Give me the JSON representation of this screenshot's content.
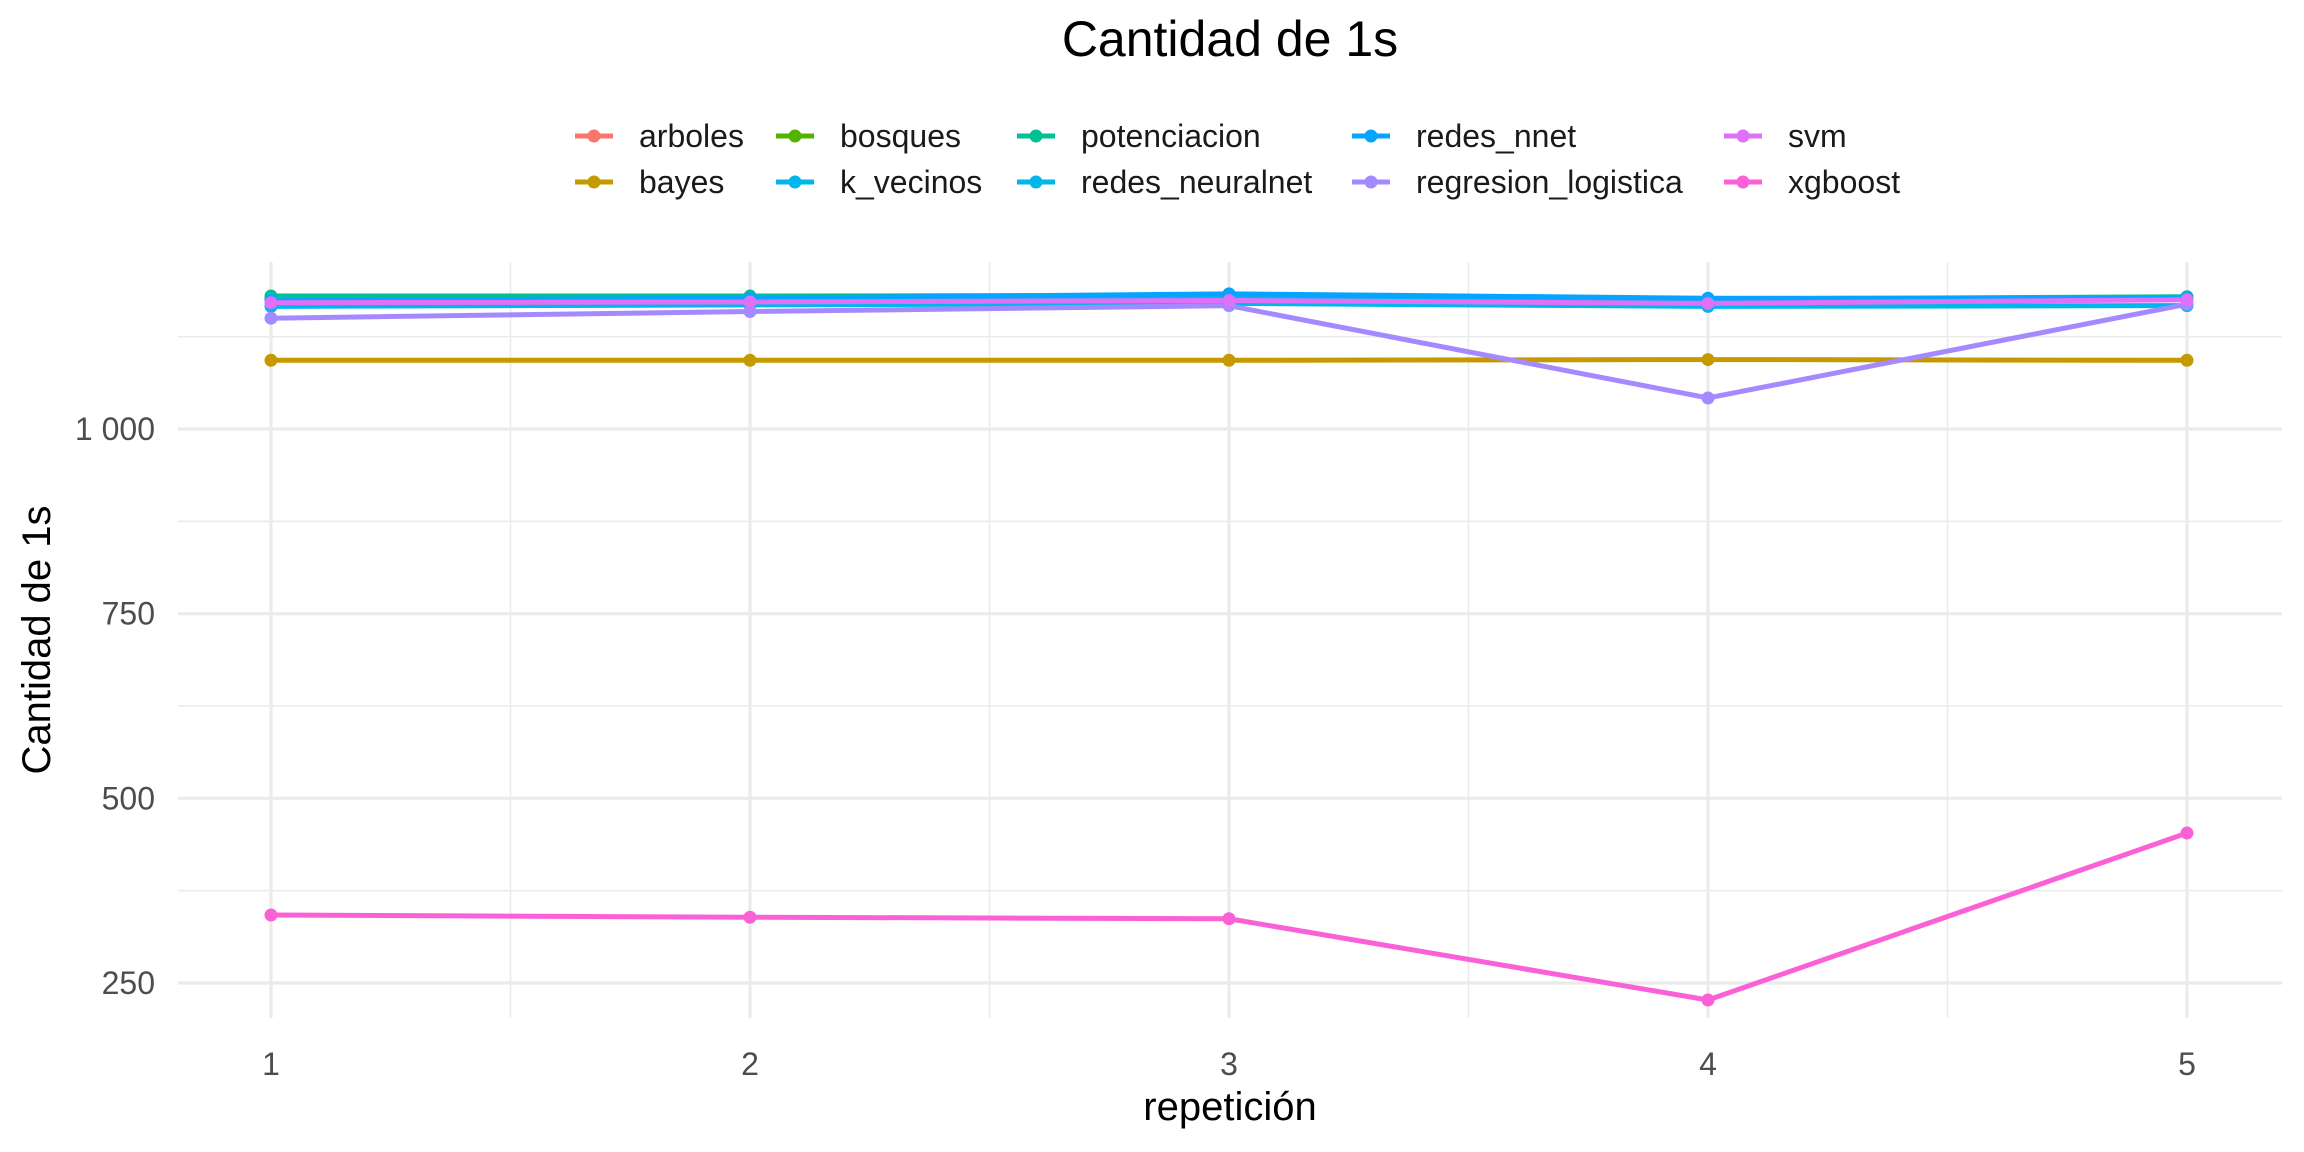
{
  "chart_data": {
    "type": "line",
    "title": "Cantidad de 1s",
    "xlabel": "repetición",
    "ylabel": "Cantidad de 1s",
    "x": [
      1,
      2,
      3,
      4,
      5
    ],
    "x_tick_labels": [
      "1",
      "2",
      "3",
      "4",
      "5"
    ],
    "xlim": [
      0.8,
      5.2
    ],
    "y_ticks": [
      250,
      500,
      750,
      1000
    ],
    "y_tick_labels": [
      "250",
      "500",
      "750",
      "1 000"
    ],
    "ylim": [
      220,
      1220
    ],
    "grid": true,
    "legend_position": "top",
    "series": [
      {
        "name": "arboles",
        "color": "#F8766D",
        "values": [
          1176,
          1174,
          1177,
          1174,
          1177
        ]
      },
      {
        "name": "bayes",
        "color": "#C49A00",
        "values": [
          1093,
          1093,
          1093,
          1094,
          1093
        ]
      },
      {
        "name": "bosques",
        "color": "#53B400",
        "values": [
          1178,
          1178,
          1179,
          1175,
          1178
        ]
      },
      {
        "name": "k_vecinos",
        "color": "#00B6EB",
        "values": [
          1166,
          1168,
          1170,
          1166,
          1167
        ]
      },
      {
        "name": "potenciacion",
        "color": "#00C094",
        "values": [
          1180,
          1180,
          1181,
          1176,
          1179
        ]
      },
      {
        "name": "redes_neuralnet",
        "color": "#00B6EB",
        "values": [
          1175,
          1175,
          1176,
          1174,
          1176
        ]
      },
      {
        "name": "redes_nnet",
        "color": "#06A4FF",
        "values": [
          1174,
          1177,
          1183,
          1177,
          1177
        ]
      },
      {
        "name": "regresion_logistica",
        "color": "#A58AFF",
        "values": [
          1150,
          1159,
          1167,
          1042,
          1169
        ]
      },
      {
        "name": "svm",
        "color": "#DF70F8",
        "values": [
          1171,
          1172,
          1174,
          1170,
          1175
        ]
      },
      {
        "name": "xgboost",
        "color": "#FB61D7",
        "values": [
          342,
          339,
          337,
          227,
          453
        ]
      }
    ]
  }
}
